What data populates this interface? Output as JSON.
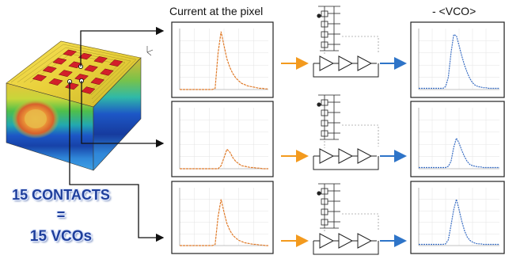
{
  "titles": {
    "current": "Current at the pixel",
    "vco": "- <VCO>"
  },
  "caption": {
    "line1": "15 CONTACTS",
    "line2": "=",
    "line3": "15 VCOs"
  },
  "colors": {
    "current_trace": "#e07b2a",
    "vco_trace": "#3b6fc4",
    "orange_arrow": "#f39a1e",
    "blue_arrow": "#2e74c8"
  },
  "chart_data": [
    {
      "type": "line",
      "series": [
        {
          "x": [
            0,
            1,
            2,
            3,
            4,
            5,
            6,
            7,
            8,
            9,
            10,
            11,
            12,
            13,
            14,
            15,
            16,
            17,
            18,
            19,
            20,
            21,
            22,
            23,
            24,
            25,
            26,
            27,
            28,
            29,
            30
          ],
          "values": [
            0,
            0,
            0,
            0,
            0,
            0,
            0,
            0,
            0,
            0,
            0,
            0,
            0.02,
            0.6,
            0.95,
            0.72,
            0.5,
            0.36,
            0.26,
            0.19,
            0.14,
            0.1,
            0.08,
            0.06,
            0.05,
            0.04,
            0.03,
            0.02,
            0.02,
            0.01,
            0.01
          ]
        }
      ]
    },
    {
      "type": "line",
      "series": [
        {
          "x": [
            0,
            1,
            2,
            3,
            4,
            5,
            6,
            7,
            8,
            9,
            10,
            11,
            12,
            13,
            14,
            15,
            16,
            17,
            18,
            19,
            20,
            21,
            22,
            23,
            24,
            25,
            26,
            27,
            28,
            29,
            30
          ],
          "values": [
            0,
            0,
            0,
            0,
            0,
            0,
            0,
            0,
            0,
            0,
            0,
            0,
            0,
            0,
            0.05,
            0.18,
            0.32,
            0.27,
            0.18,
            0.12,
            0.08,
            0.05,
            0.04,
            0.03,
            0.02,
            0.02,
            0.01,
            0.01,
            0,
            0,
            0
          ]
        }
      ]
    },
    {
      "type": "line",
      "series": [
        {
          "x": [
            0,
            1,
            2,
            3,
            4,
            5,
            6,
            7,
            8,
            9,
            10,
            11,
            12,
            13,
            14,
            15,
            16,
            17,
            18,
            19,
            20,
            21,
            22,
            23,
            24,
            25,
            26,
            27,
            28,
            29,
            30
          ],
          "values": [
            0,
            0,
            0,
            0,
            0,
            0,
            0,
            0,
            0,
            0,
            0,
            0,
            0.02,
            0.5,
            0.8,
            0.58,
            0.38,
            0.26,
            0.18,
            0.13,
            0.09,
            0.07,
            0.05,
            0.04,
            0.03,
            0.02,
            0.02,
            0.01,
            0.01,
            0,
            0
          ]
        }
      ]
    },
    {
      "type": "line",
      "series": [
        {
          "x": [
            0,
            1,
            2,
            3,
            4,
            5,
            6,
            7,
            8,
            9,
            10,
            11,
            12,
            13,
            14,
            15,
            16,
            17,
            18,
            19,
            20,
            21,
            22,
            23,
            24,
            25,
            26,
            27,
            28,
            29,
            30
          ],
          "values": [
            0.02,
            0.02,
            0.02,
            0.02,
            0.02,
            0.02,
            0.02,
            0.02,
            0.02,
            0.02,
            0.05,
            0.2,
            0.6,
            0.9,
            0.88,
            0.72,
            0.55,
            0.4,
            0.28,
            0.18,
            0.11,
            0.07,
            0.05,
            0.04,
            0.03,
            0.03,
            0.02,
            0.02,
            0.02,
            0.02,
            0.02
          ]
        }
      ]
    },
    {
      "type": "line",
      "series": [
        {
          "x": [
            0,
            1,
            2,
            3,
            4,
            5,
            6,
            7,
            8,
            9,
            10,
            11,
            12,
            13,
            14,
            15,
            16,
            17,
            18,
            19,
            20,
            21,
            22,
            23,
            24,
            25,
            26,
            27,
            28,
            29,
            30
          ],
          "values": [
            0.02,
            0.02,
            0.02,
            0.02,
            0.02,
            0.02,
            0.02,
            0.02,
            0.02,
            0.02,
            0.02,
            0.04,
            0.12,
            0.35,
            0.5,
            0.42,
            0.3,
            0.2,
            0.12,
            0.07,
            0.05,
            0.04,
            0.03,
            0.03,
            0.02,
            0.02,
            0.02,
            0.02,
            0.02,
            0.02,
            0.02
          ]
        }
      ]
    },
    {
      "type": "line",
      "series": [
        {
          "x": [
            0,
            1,
            2,
            3,
            4,
            5,
            6,
            7,
            8,
            9,
            10,
            11,
            12,
            13,
            14,
            15,
            16,
            17,
            18,
            19,
            20,
            21,
            22,
            23,
            24,
            25,
            26,
            27,
            28,
            29,
            30
          ],
          "values": [
            0.02,
            0.02,
            0.02,
            0.02,
            0.02,
            0.02,
            0.02,
            0.02,
            0.02,
            0.02,
            0.03,
            0.1,
            0.35,
            0.62,
            0.8,
            0.62,
            0.42,
            0.26,
            0.15,
            0.09,
            0.06,
            0.04,
            0.03,
            0.03,
            0.02,
            0.02,
            0.02,
            0.02,
            0.02,
            0.02,
            0.02
          ]
        }
      ]
    }
  ]
}
